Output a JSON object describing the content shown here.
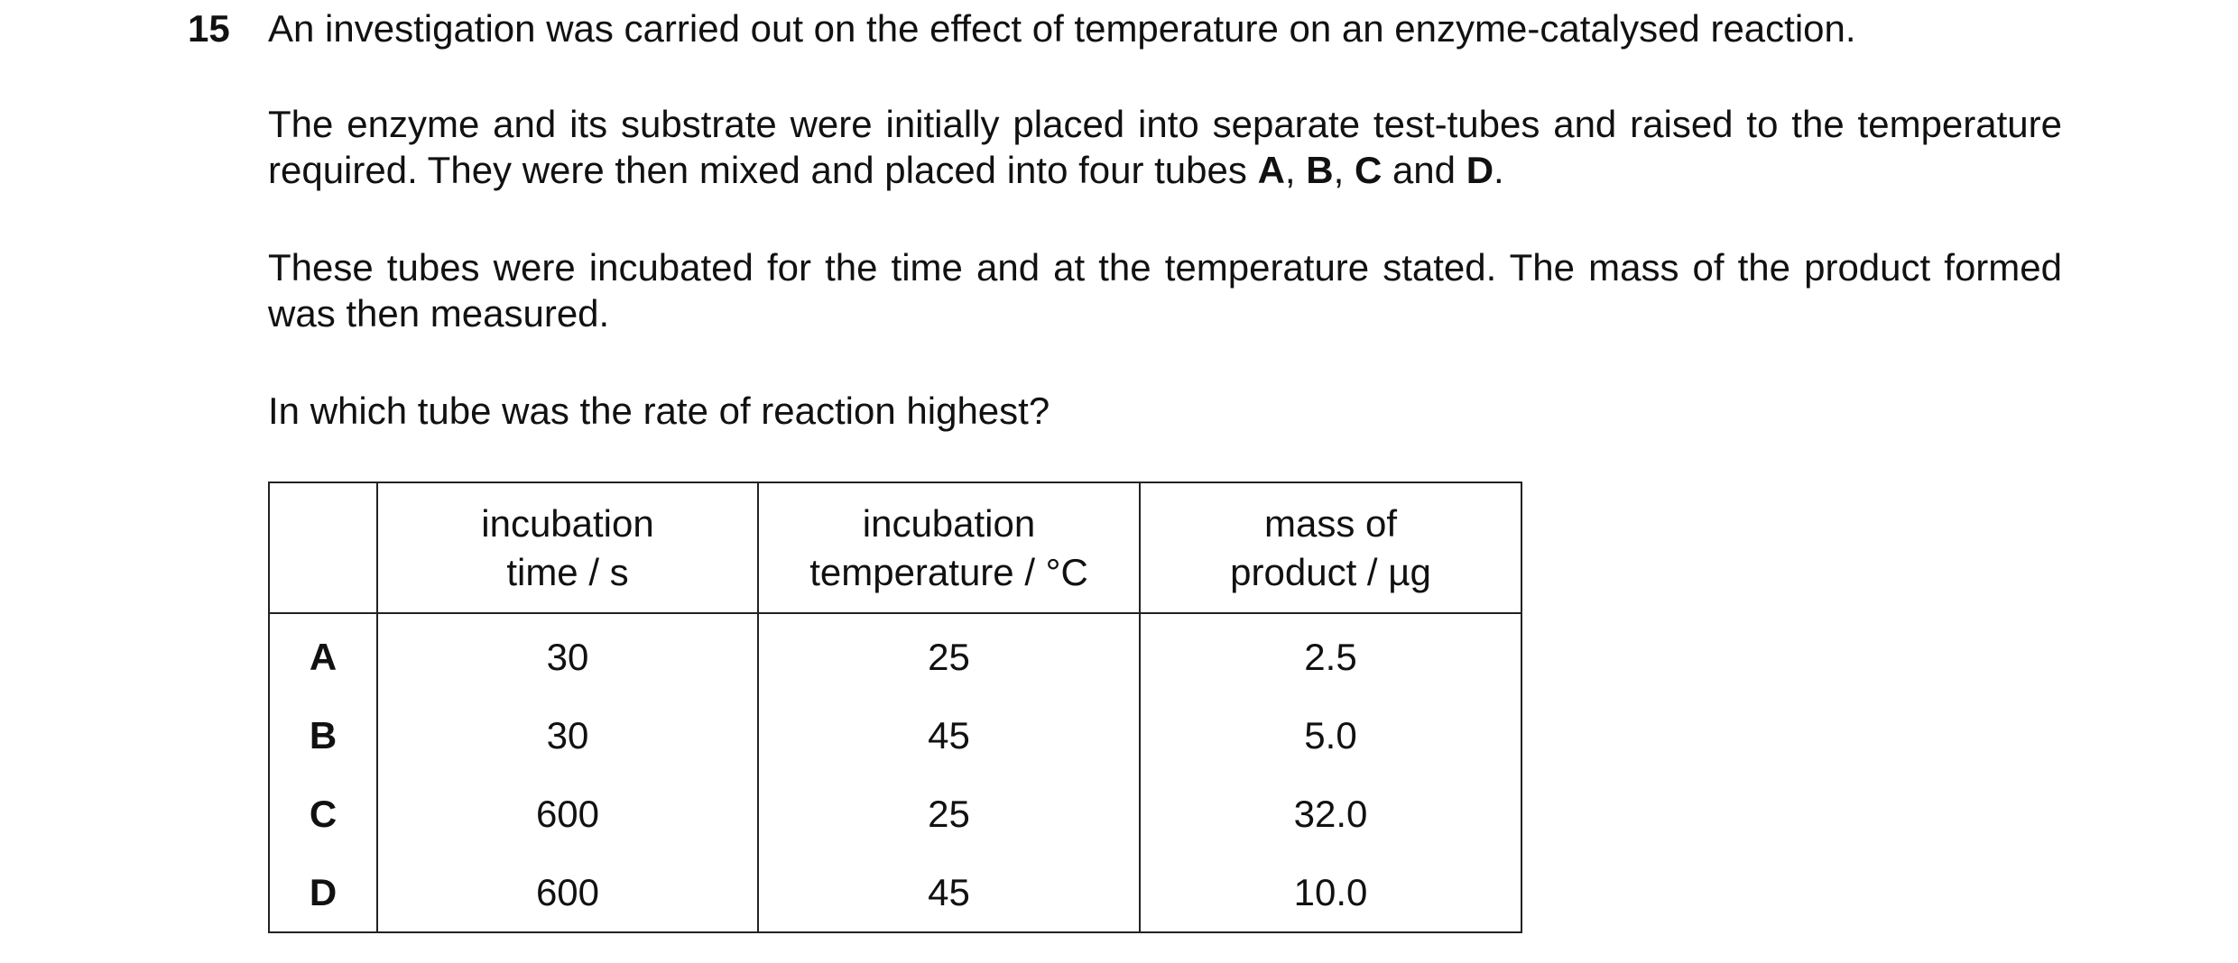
{
  "question": {
    "number": "15",
    "intro": "An investigation was carried out on the effect of temperature on an enzyme-catalysed reaction.",
    "setup": [
      {
        "text": "The enzyme and its substrate were initially placed into separate test-tubes and raised to the temperature required. They were then mixed and placed into four tubes ",
        "bold": false
      },
      {
        "text": "A",
        "bold": true
      },
      {
        "text": ", ",
        "bold": false
      },
      {
        "text": "B",
        "bold": true
      },
      {
        "text": ", ",
        "bold": false
      },
      {
        "text": "C",
        "bold": true
      },
      {
        "text": " and ",
        "bold": false
      },
      {
        "text": "D",
        "bold": true
      },
      {
        "text": ".",
        "bold": false
      }
    ],
    "method": "These tubes were incubated for the time and at the temperature stated. The mass of the product formed was then measured.",
    "prompt": "In which tube was the rate of reaction highest?"
  },
  "table": {
    "header": [
      [
        "incubation",
        "time / s"
      ],
      [
        "incubation",
        "temperature / °C"
      ],
      [
        "mass of",
        "product / µg"
      ]
    ],
    "rows": [
      [
        "A",
        "30",
        "25",
        "2.5"
      ],
      [
        "B",
        "30",
        "45",
        "5.0"
      ],
      [
        "C",
        "600",
        "25",
        "32.0"
      ],
      [
        "D",
        "600",
        "45",
        "10.0"
      ]
    ]
  }
}
